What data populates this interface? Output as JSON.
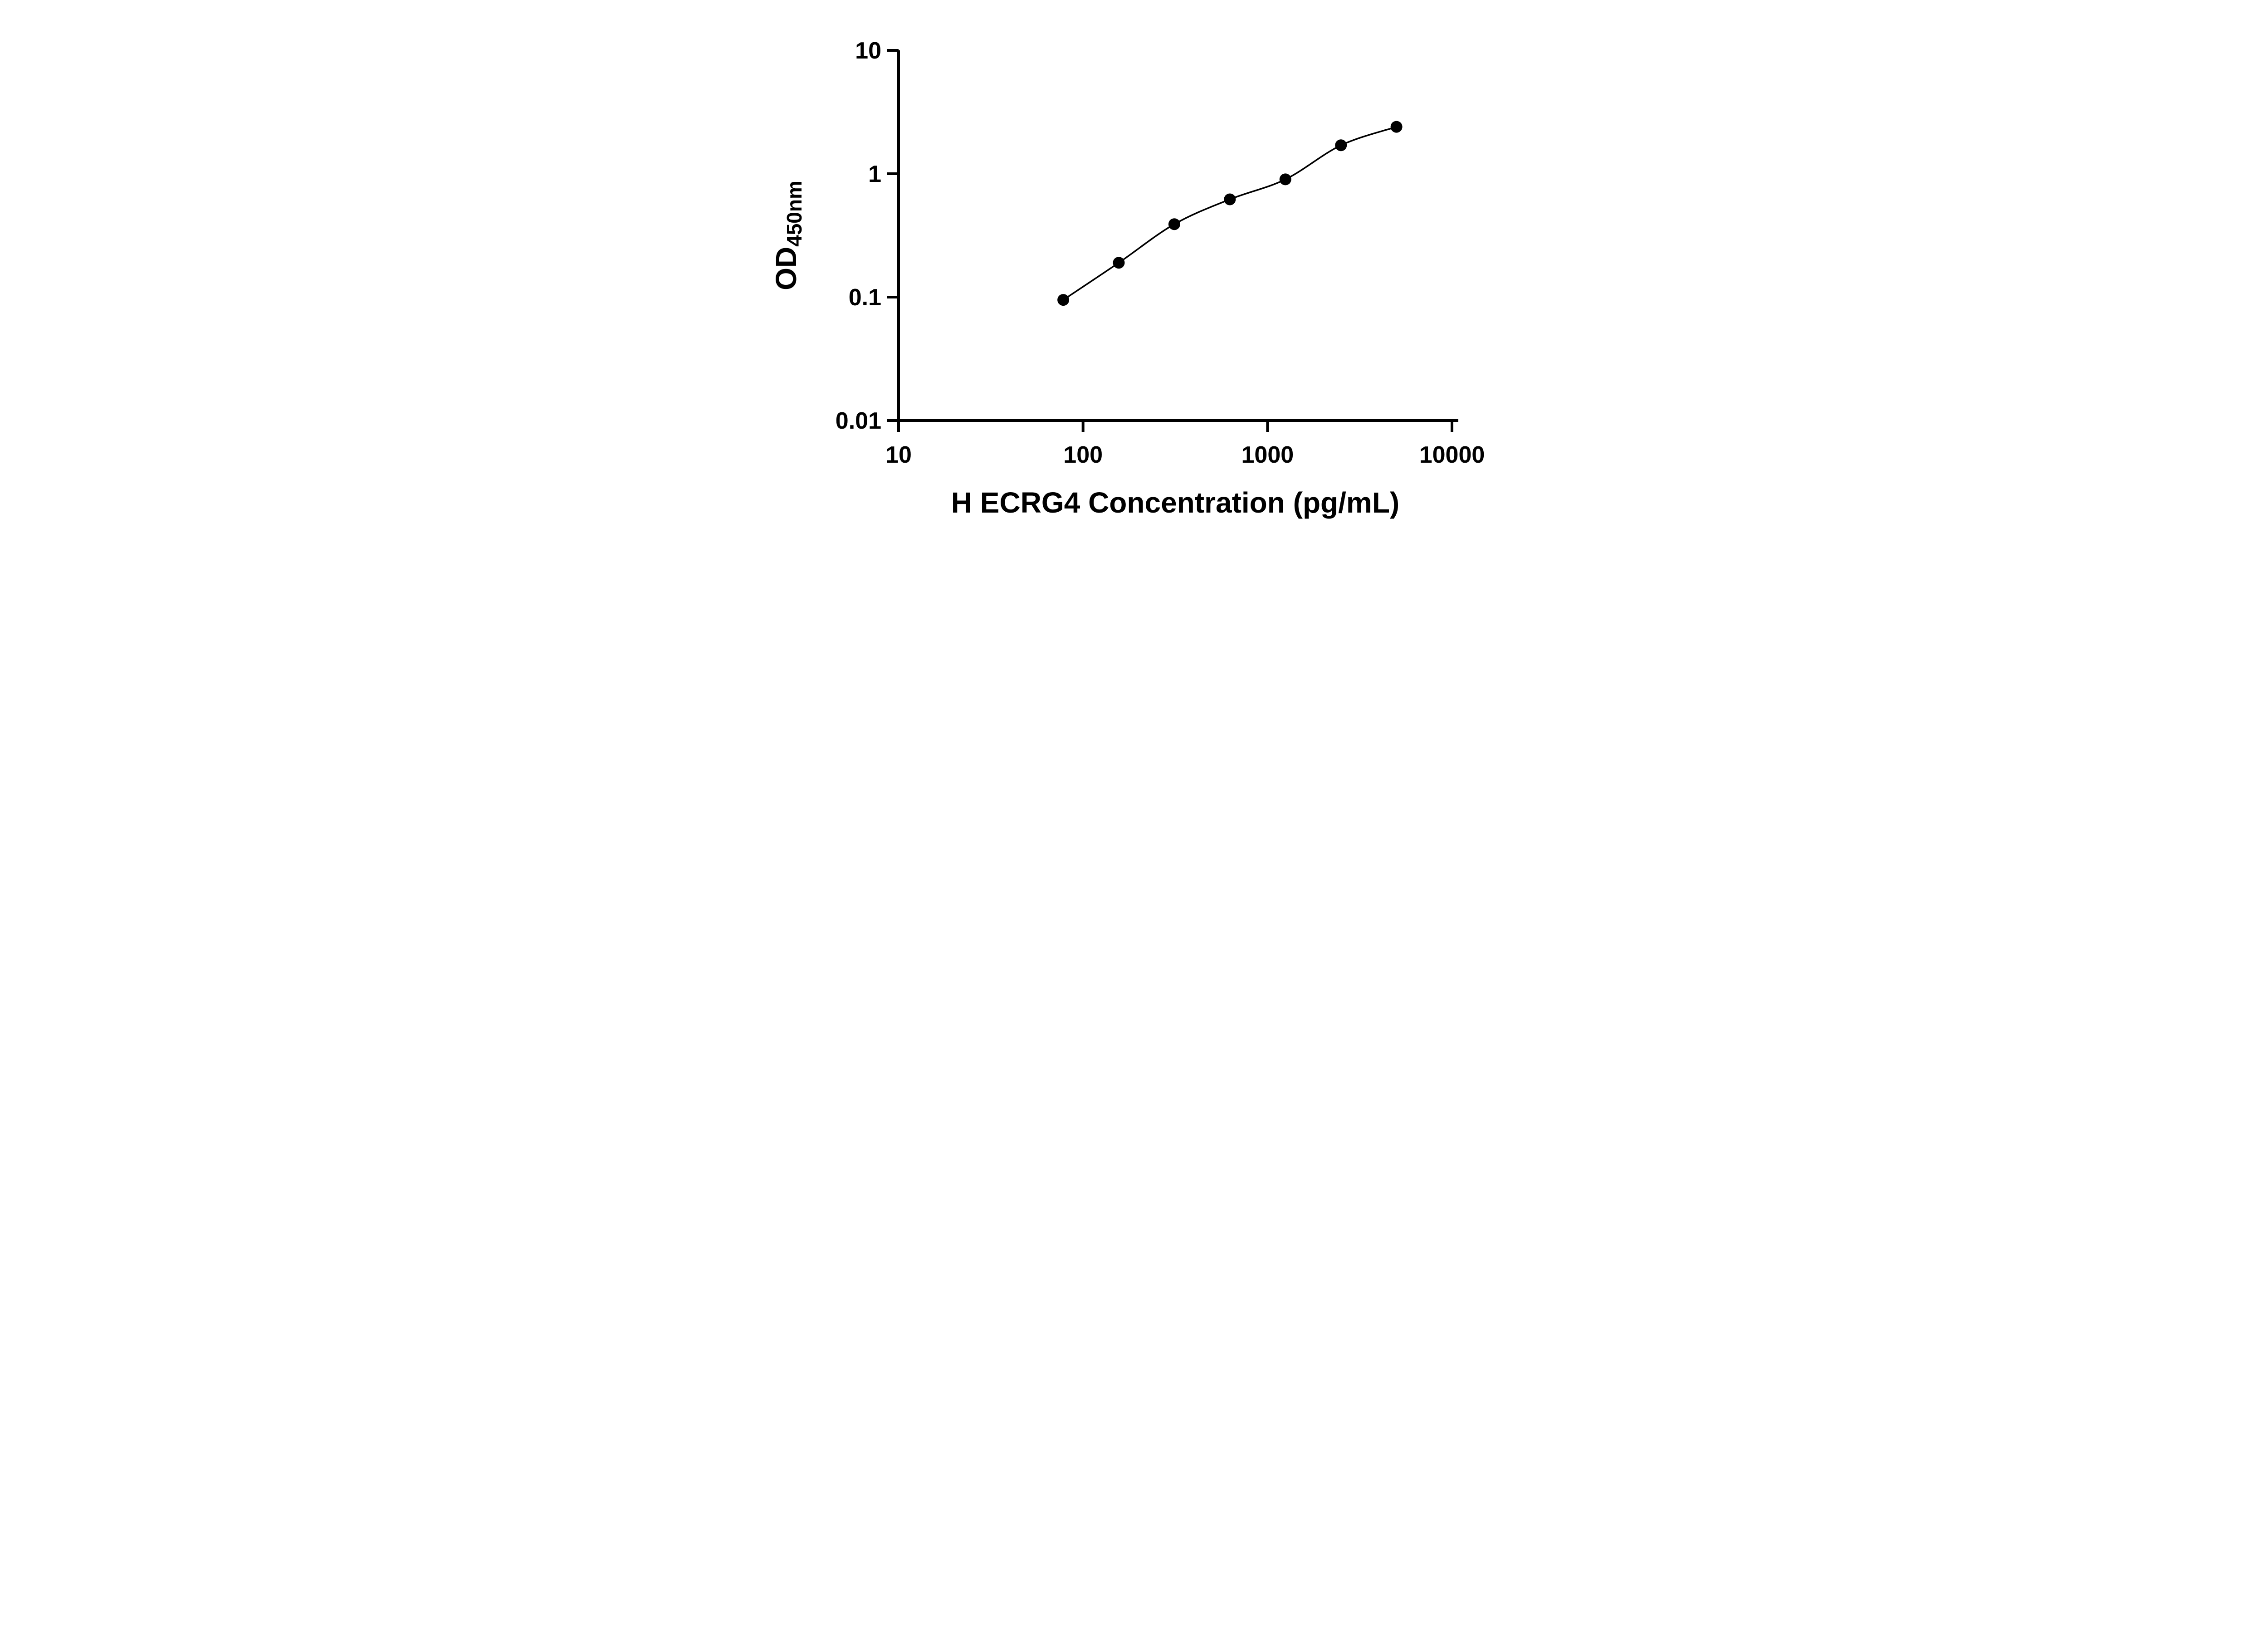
{
  "page": {
    "background": "#ffffff",
    "foreground": "#000000"
  },
  "chart_data": {
    "type": "scatter",
    "title": "",
    "xlabel": "H ECRG4 Concentration (pg/mL)",
    "ylabel_main": "OD",
    "ylabel_sub": "450nm",
    "x_scale": "log",
    "y_scale": "log",
    "xlim": [
      10,
      10000
    ],
    "ylim": [
      0.01,
      10
    ],
    "x_ticks": {
      "values": [
        10,
        100,
        1000,
        10000
      ],
      "labels": [
        "10",
        "100",
        "1000",
        "10000"
      ]
    },
    "y_ticks": {
      "values": [
        10,
        1,
        0.1,
        0.01
      ],
      "labels": [
        "10",
        "1",
        "0.1",
        "0.01"
      ]
    },
    "grid": false,
    "legend": "none",
    "marker_color": "#000000",
    "line_color": "#000000",
    "series": [
      {
        "marker": "circle",
        "fit_line": true,
        "points": [
          {
            "x": 78.125,
            "y": 0.095
          },
          {
            "x": 156.25,
            "y": 0.19
          },
          {
            "x": 312.5,
            "y": 0.39
          },
          {
            "x": 625,
            "y": 0.62
          },
          {
            "x": 1250,
            "y": 0.9
          },
          {
            "x": 2500,
            "y": 1.7
          },
          {
            "x": 5000,
            "y": 2.4
          }
        ]
      }
    ]
  }
}
